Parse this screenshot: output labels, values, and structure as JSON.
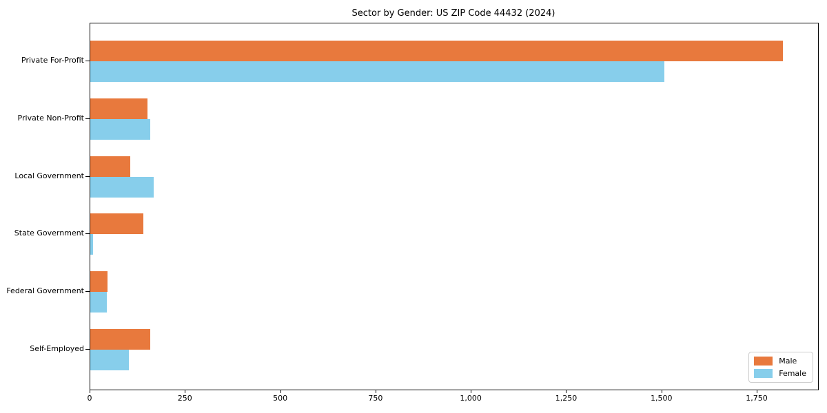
{
  "chart_data": {
    "type": "bar",
    "orientation": "horizontal",
    "title": "Sector by Gender: US ZIP Code 44432 (2024)",
    "categories": [
      "Private For-Profit",
      "Private Non-Profit",
      "Local Government",
      "State Government",
      "Federal Government",
      "Self-Employed"
    ],
    "series": [
      {
        "name": "Male",
        "color": "#e8793d",
        "values": [
          1816,
          150,
          104,
          140,
          45,
          158
        ]
      },
      {
        "name": "Female",
        "color": "#87ceeb",
        "values": [
          1506,
          157,
          166,
          8,
          44,
          101
        ]
      }
    ],
    "xlabel": "",
    "ylabel": "",
    "xlim": [
      0,
      1909
    ],
    "xticks": [
      0,
      250,
      500,
      750,
      1000,
      1250,
      1500,
      1750
    ],
    "xtick_labels": [
      "0",
      "250",
      "500",
      "750",
      "1,000",
      "1,250",
      "1,500",
      "1,750"
    ],
    "grid": false,
    "legend": {
      "position": "lower right",
      "entries": [
        "Male",
        "Female"
      ]
    },
    "colors": {
      "male": "#e8793d",
      "female": "#87ceeb",
      "spine": "#000000",
      "legend_border": "#cccccc",
      "background": "#ffffff"
    }
  }
}
